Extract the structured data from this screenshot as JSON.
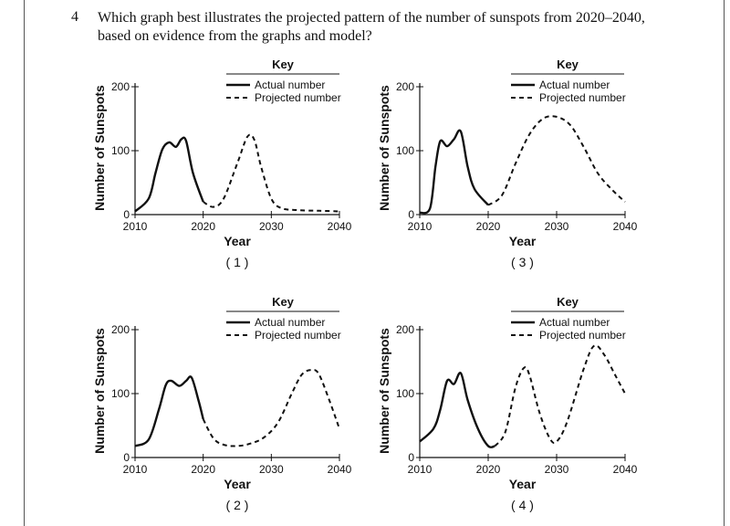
{
  "question": {
    "number": "4",
    "line1": "Which graph best illustrates the projected pattern of the number of sunspots from 2020–2040,",
    "line2": "based on evidence from the graphs and model?"
  },
  "key": {
    "title": "Key",
    "actual_label": "Actual number",
    "projected_label": "Projected number"
  },
  "chart_data": [
    {
      "type": "line",
      "option_label": "( 1 )",
      "xlabel": "Year",
      "ylabel": "Number of Sunspots",
      "xlim": [
        2010,
        2040
      ],
      "ylim": [
        0,
        200
      ],
      "xticks": [
        2010,
        2020,
        2030,
        2040
      ],
      "yticks": [
        0,
        100,
        200
      ],
      "series": [
        {
          "name": "Actual number",
          "style": "solid",
          "points": [
            [
              2010,
              5
            ],
            [
              2012,
              25
            ],
            [
              2013,
              65
            ],
            [
              2014,
              102
            ],
            [
              2015,
              113
            ],
            [
              2016,
              106
            ],
            [
              2016.8,
              118
            ],
            [
              2017.5,
              115
            ],
            [
              2018.5,
              65
            ],
            [
              2020,
              20
            ]
          ]
        },
        {
          "name": "Projected number",
          "style": "dashed",
          "points": [
            [
              2020,
              20
            ],
            [
              2021.5,
              12
            ],
            [
              2023,
              25
            ],
            [
              2025,
              80
            ],
            [
              2026.5,
              122
            ],
            [
              2027.5,
              117
            ],
            [
              2028.5,
              75
            ],
            [
              2030,
              25
            ],
            [
              2031.5,
              10
            ],
            [
              2034,
              7
            ],
            [
              2037,
              6
            ],
            [
              2040,
              5
            ]
          ]
        }
      ]
    },
    {
      "type": "line",
      "option_label": "( 3 )",
      "xlabel": "Year",
      "ylabel": "Number of Sunspots",
      "xlim": [
        2010,
        2040
      ],
      "ylim": [
        0,
        200
      ],
      "xticks": [
        2010,
        2020,
        2030,
        2040
      ],
      "yticks": [
        0,
        100,
        200
      ],
      "series": [
        {
          "name": "Actual number",
          "style": "solid",
          "points": [
            [
              2010,
              3
            ],
            [
              2011.5,
              10
            ],
            [
              2012.3,
              75
            ],
            [
              2013,
              115
            ],
            [
              2014,
              107
            ],
            [
              2015,
              118
            ],
            [
              2016,
              130
            ],
            [
              2017,
              75
            ],
            [
              2018,
              40
            ],
            [
              2020,
              15
            ]
          ]
        },
        {
          "name": "Projected number",
          "style": "dashed",
          "points": [
            [
              2020,
              15
            ],
            [
              2022,
              30
            ],
            [
              2024,
              80
            ],
            [
              2026,
              125
            ],
            [
              2028,
              150
            ],
            [
              2030,
              153
            ],
            [
              2032,
              140
            ],
            [
              2034,
              105
            ],
            [
              2036,
              65
            ],
            [
              2038,
              40
            ],
            [
              2040,
              20
            ]
          ]
        }
      ]
    },
    {
      "type": "line",
      "option_label": "( 2 )",
      "xlabel": "Year",
      "ylabel": "Number of Sunspots",
      "xlim": [
        2010,
        2040
      ],
      "ylim": [
        0,
        200
      ],
      "xticks": [
        2010,
        2020,
        2030,
        2040
      ],
      "yticks": [
        0,
        100,
        200
      ],
      "series": [
        {
          "name": "Actual number",
          "style": "solid",
          "points": [
            [
              2010,
              18
            ],
            [
              2012,
              28
            ],
            [
              2013.5,
              75
            ],
            [
              2014.5,
              113
            ],
            [
              2015.3,
              120
            ],
            [
              2016.5,
              112
            ],
            [
              2017.5,
              120
            ],
            [
              2018.3,
              125
            ],
            [
              2019.3,
              90
            ],
            [
              2020,
              60
            ]
          ]
        },
        {
          "name": "Projected number",
          "style": "dashed",
          "points": [
            [
              2020,
              60
            ],
            [
              2021.5,
              30
            ],
            [
              2023,
              20
            ],
            [
              2025,
              18
            ],
            [
              2027,
              22
            ],
            [
              2029,
              32
            ],
            [
              2031,
              55
            ],
            [
              2033,
              100
            ],
            [
              2034.5,
              130
            ],
            [
              2036,
              137
            ],
            [
              2037,
              130
            ],
            [
              2038.5,
              90
            ],
            [
              2040,
              45
            ]
          ]
        }
      ]
    },
    {
      "type": "line",
      "option_label": "( 4 )",
      "xlabel": "Year",
      "ylabel": "Number of Sunspots",
      "xlim": [
        2010,
        2040
      ],
      "ylim": [
        0,
        200
      ],
      "xticks": [
        2010,
        2020,
        2030,
        2040
      ],
      "yticks": [
        0,
        100,
        200
      ],
      "series": [
        {
          "name": "Actual number",
          "style": "solid",
          "points": [
            [
              2010,
              25
            ],
            [
              2012,
              45
            ],
            [
              2013,
              75
            ],
            [
              2014,
              120
            ],
            [
              2015,
              115
            ],
            [
              2016,
              132
            ],
            [
              2017,
              90
            ],
            [
              2018.5,
              45
            ],
            [
              2020,
              18
            ],
            [
              2021,
              18
            ]
          ]
        },
        {
          "name": "Projected number",
          "style": "dashed",
          "points": [
            [
              2021,
              18
            ],
            [
              2022.5,
              40
            ],
            [
              2024,
              110
            ],
            [
              2025.2,
              140
            ],
            [
              2026,
              130
            ],
            [
              2027.5,
              70
            ],
            [
              2029,
              30
            ],
            [
              2030,
              25
            ],
            [
              2031.5,
              55
            ],
            [
              2034,
              140
            ],
            [
              2035.5,
              175
            ],
            [
              2037,
              160
            ],
            [
              2038.5,
              130
            ],
            [
              2040,
              100
            ]
          ]
        }
      ]
    }
  ]
}
